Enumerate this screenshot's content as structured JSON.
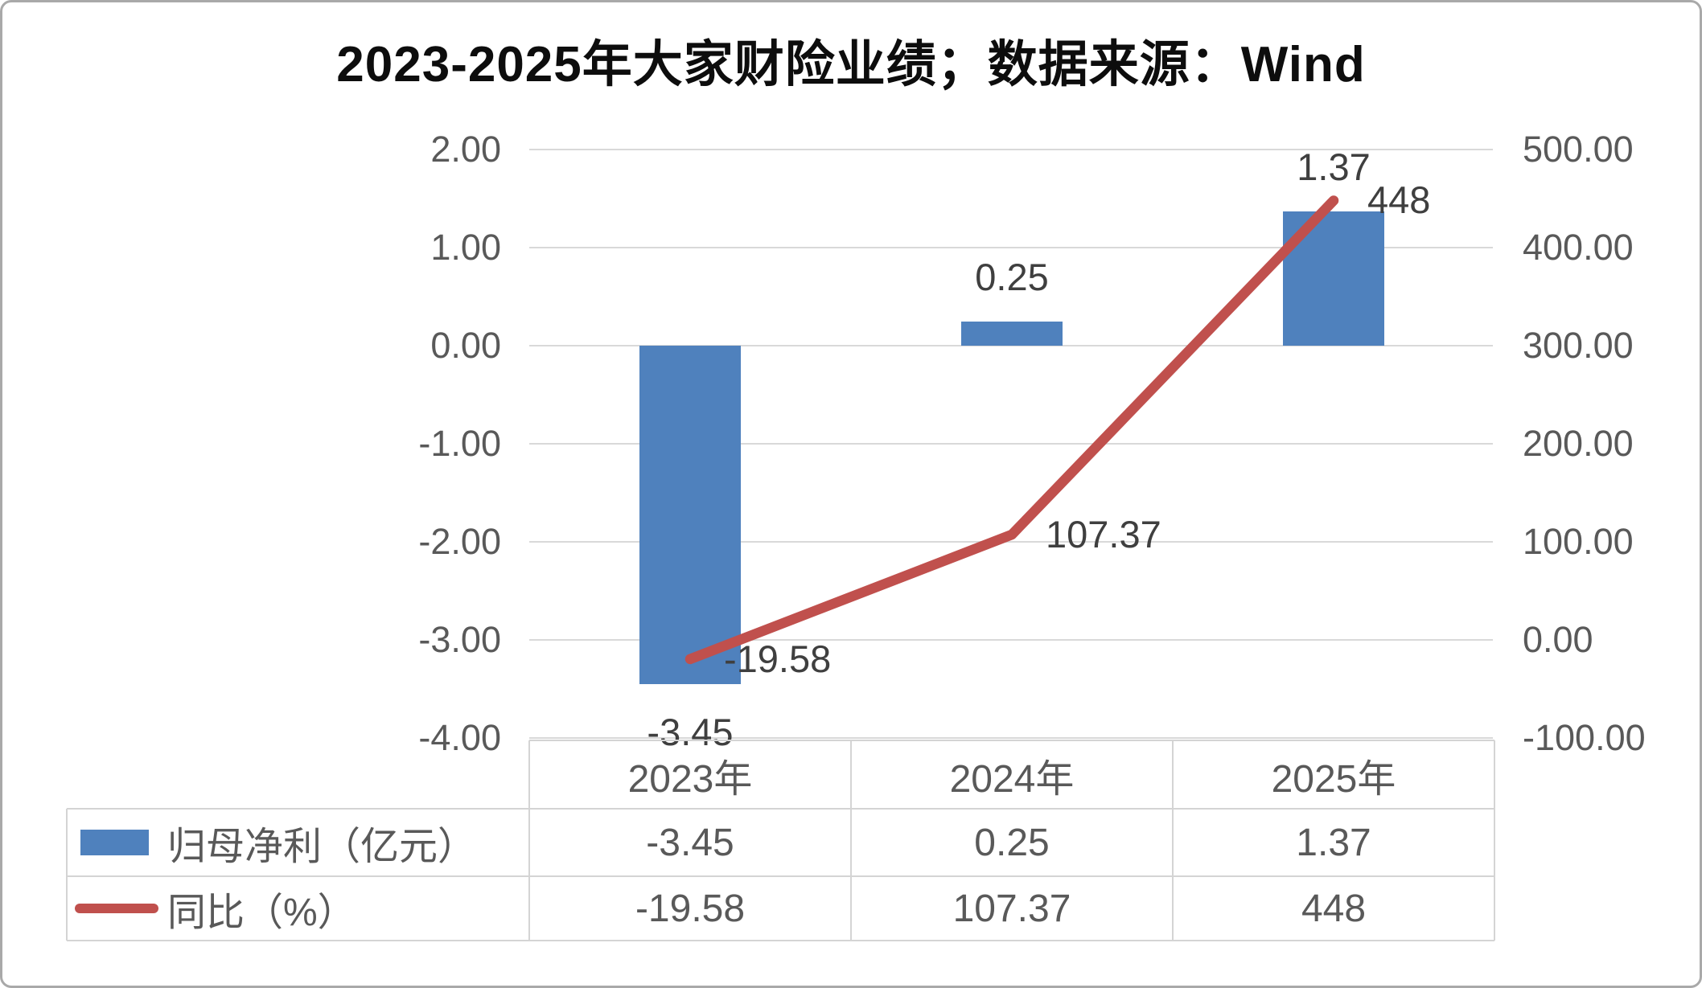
{
  "title": "2023-2025年大家财险业绩；数据来源：Wind",
  "colors": {
    "bar": "#4F81BD",
    "line": "#C0504D",
    "grid": "#D9D9D9",
    "table_border": "#D4D4D4",
    "axis_text": "#595959",
    "table_text": "#595959",
    "data_label_text": "#3F3F3F",
    "title_text": "#0D0D0D"
  },
  "chart_data": {
    "type": "bar+line combo",
    "title": "2023-2025年大家财险业绩；数据来源：Wind",
    "categories": [
      "2023年",
      "2024年",
      "2025年"
    ],
    "series": [
      {
        "name": "归母净利（亿元）",
        "type": "bar",
        "axis": "left",
        "values": [
          -3.45,
          0.25,
          1.37
        ],
        "labels": [
          "-3.45",
          "0.25",
          "1.37"
        ],
        "color": "#4F81BD"
      },
      {
        "name": "同比（%）",
        "type": "line",
        "axis": "right",
        "values": [
          -19.58,
          107.37,
          448
        ],
        "labels": [
          "-19.58",
          "107.37",
          "448"
        ],
        "color": "#C0504D"
      }
    ],
    "left_axis": {
      "ticks": [
        "2.00",
        "1.00",
        "0.00",
        "-1.00",
        "-2.00",
        "-3.00",
        "-4.00"
      ],
      "max": 2,
      "min": -4
    },
    "right_axis": {
      "ticks": [
        "500.00",
        "400.00",
        "300.00",
        "200.00",
        "100.00",
        "0.00",
        "-100.00"
      ],
      "max": 500,
      "min": -100
    },
    "grid": "horizontal only",
    "legend_position": "bottom-left table column"
  },
  "table": {
    "column_headers": [
      "2023年",
      "2024年",
      "2025年"
    ],
    "rows": [
      {
        "swatch": "bar-swatch",
        "label": "归母净利（亿元）",
        "values": [
          "-3.45",
          "0.25",
          "1.37"
        ]
      },
      {
        "swatch": "line-swatch",
        "label": "同比（%）",
        "values": [
          "-19.58",
          "107.37",
          "448"
        ]
      }
    ]
  }
}
